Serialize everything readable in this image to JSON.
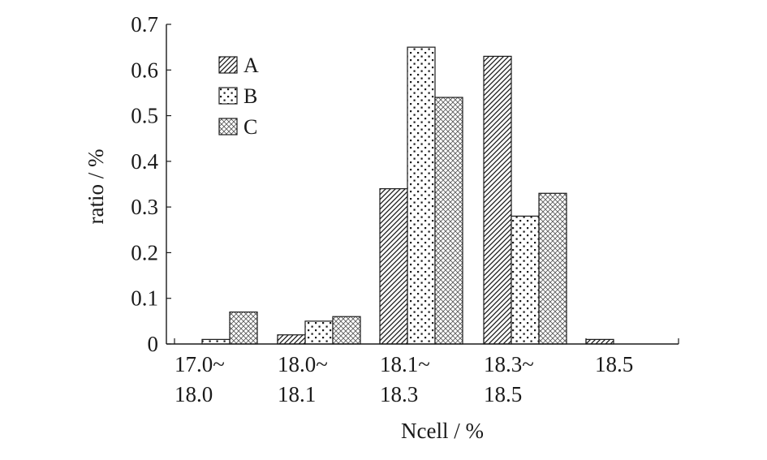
{
  "chart_data": {
    "type": "bar",
    "title": "",
    "xlabel": "Ncell / %",
    "ylabel": "ratio / %",
    "ylim": [
      0,
      0.7
    ],
    "yticks": [
      0,
      0.1,
      0.2,
      0.3,
      0.4,
      0.5,
      0.6,
      0.7
    ],
    "ytick_labels": [
      "0",
      "0.1",
      "0.2",
      "0.3",
      "0.4",
      "0.5",
      "0.6",
      "0.7"
    ],
    "categories": [
      {
        "line1": "17.0~",
        "line2": "18.0"
      },
      {
        "line1": "18.0~",
        "line2": "18.1"
      },
      {
        "line1": "18.1~",
        "line2": "18.3"
      },
      {
        "line1": "18.3~",
        "line2": "18.5"
      },
      {
        "line1": "18.5",
        "line2": ""
      }
    ],
    "series": [
      {
        "name": "A",
        "pattern": "hatch",
        "values": [
          0,
          0.02,
          0.34,
          0.63,
          0.01
        ]
      },
      {
        "name": "B",
        "pattern": "dots",
        "values": [
          0.01,
          0.05,
          0.65,
          0.28,
          0
        ]
      },
      {
        "name": "C",
        "pattern": "cross",
        "values": [
          0.07,
          0.06,
          0.54,
          0.33,
          0
        ]
      }
    ],
    "legend_position": "top-left",
    "grid": false,
    "colors": {
      "stroke": "#1a1a1a",
      "background": "#ffffff"
    }
  }
}
